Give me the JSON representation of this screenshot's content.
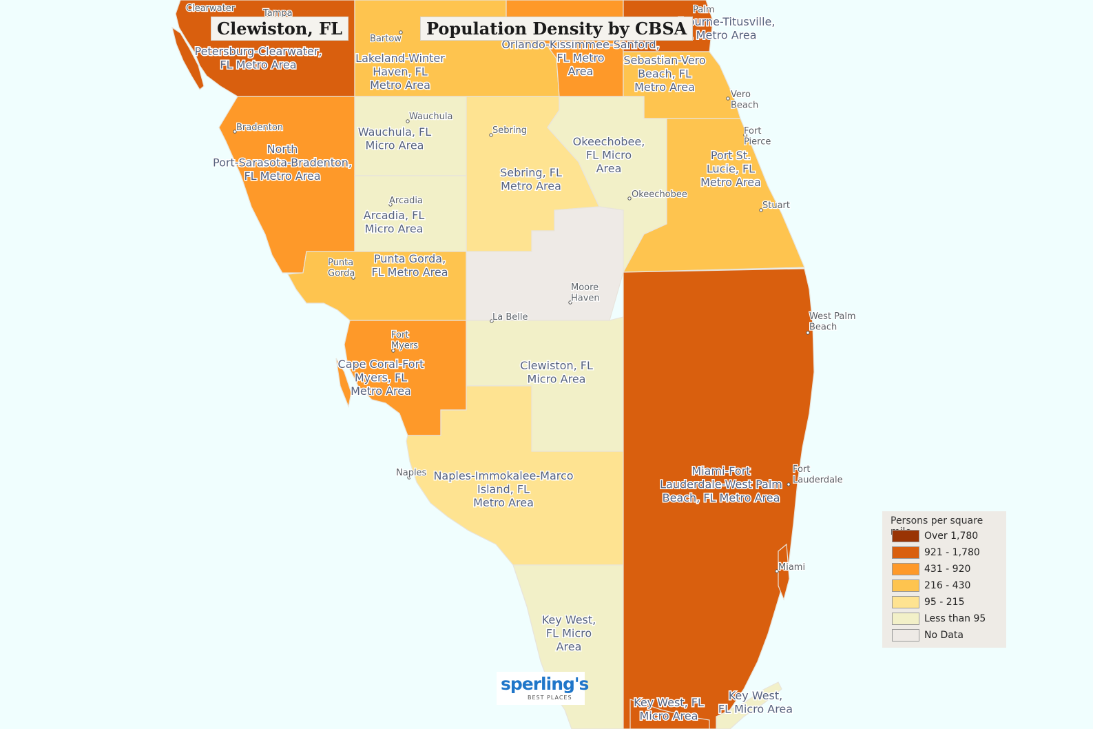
{
  "header": {
    "place_title": "Clewiston, FL",
    "map_title": "Population Density by CBSA"
  },
  "colors": {
    "over_1780": "#993404",
    "d921_1780": "#d95f0e",
    "d431_920": "#fe9929",
    "d216_430": "#fec44f",
    "d95_215": "#fee391",
    "lt95": "#f2f0c8",
    "no_data": "#eeeae6",
    "water": "#f0fefe"
  },
  "regions": {
    "tampa": "Petersburg-Clearwater,\nFL Metro Area",
    "lakeland": "Lakeland-Winter\nHaven, FL\nMetro Area",
    "orlando": "Orlando-Kissimmee-Sanford,\nFL Metro\nArea",
    "palm_bay": "Melbourne-Titusville,\nFL Metro Area",
    "sebastian": "Sebastian-Vero\nBeach, FL\nMetro Area",
    "north_port": "North\nPort-Sarasota-Bradenton,\nFL Metro Area",
    "wauchula": "Wauchula, FL\nMicro Area",
    "sebring": "Sebring, FL\nMetro Area",
    "okeechobee": "Okeechobee,\nFL Micro\nArea",
    "port_st_lucie": "Port St.\nLucie, FL\nMetro Area",
    "arcadia": "Arcadia, FL\nMicro Area",
    "punta_gorda": "Punta Gorda,\nFL Metro Area",
    "cape_coral": "Cape Coral-Fort\nMyers, FL\nMetro Area",
    "clewiston": "Clewiston, FL\nMicro Area",
    "naples": "Naples-Immokalee-Marco\nIsland, FL\nMetro Area",
    "miami": "Miami-Fort\nLauderdale-West Palm\nBeach, FL Metro Area",
    "key_west_1": "Key West,\nFL Micro\nArea",
    "key_west_2": "Key West, FL\nMicro Area",
    "key_west_3": "Key West,\nFL Micro Area"
  },
  "cities": {
    "clearwater": "Clearwater",
    "tampa": "Tampa",
    "palm": "Palm",
    "bartow": "Bartow",
    "vero_beach": "Vero\nBeach",
    "fort_pierce": "Fort\nPierce",
    "bradenton": "Bradenton",
    "wauchula": "Wauchula",
    "sebring": "Sebring",
    "okeechobee": "Okeechobee",
    "stuart": "Stuart",
    "arcadia": "Arcadia",
    "punta_gorda": "Punta\nGorda",
    "moore_haven": "Moore\nHaven",
    "la_belle": "La Belle",
    "west_palm_beach": "West Palm\nBeach",
    "fort_myers": "Fort\nMyers",
    "naples": "Naples",
    "fort_lauderdale": "Fort\nLauderdale",
    "miami": "Miami"
  },
  "legend": {
    "title": "Persons per square mile",
    "items": [
      {
        "label": "Over 1,780",
        "color": "#993404"
      },
      {
        "label": "921 - 1,780",
        "color": "#d95f0e"
      },
      {
        "label": "431 - 920",
        "color": "#fe9929"
      },
      {
        "label": "216 - 430",
        "color": "#fec44f"
      },
      {
        "label": "95 - 215",
        "color": "#fee391"
      },
      {
        "label": "Less than 95",
        "color": "#f2f0c8"
      },
      {
        "label": "No Data",
        "color": "#eeeae6"
      }
    ]
  },
  "logo": {
    "name": "sperling's",
    "tagline": "BEST PLACES"
  }
}
